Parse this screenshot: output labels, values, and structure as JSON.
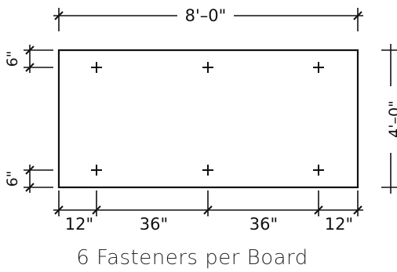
{
  "drawing": {
    "overall_width_label": "8'–0\"",
    "overall_height_label": "4'–0\"",
    "top_edge_offset_label": "6\"",
    "bottom_edge_offset_label": "6\"",
    "bottom_segment_labels": [
      "12\"",
      "36\"",
      "36\"",
      "12\""
    ],
    "caption": "6 Fasteners per Board",
    "fastener_count": 6,
    "fastener_marker": "plus-icon"
  }
}
